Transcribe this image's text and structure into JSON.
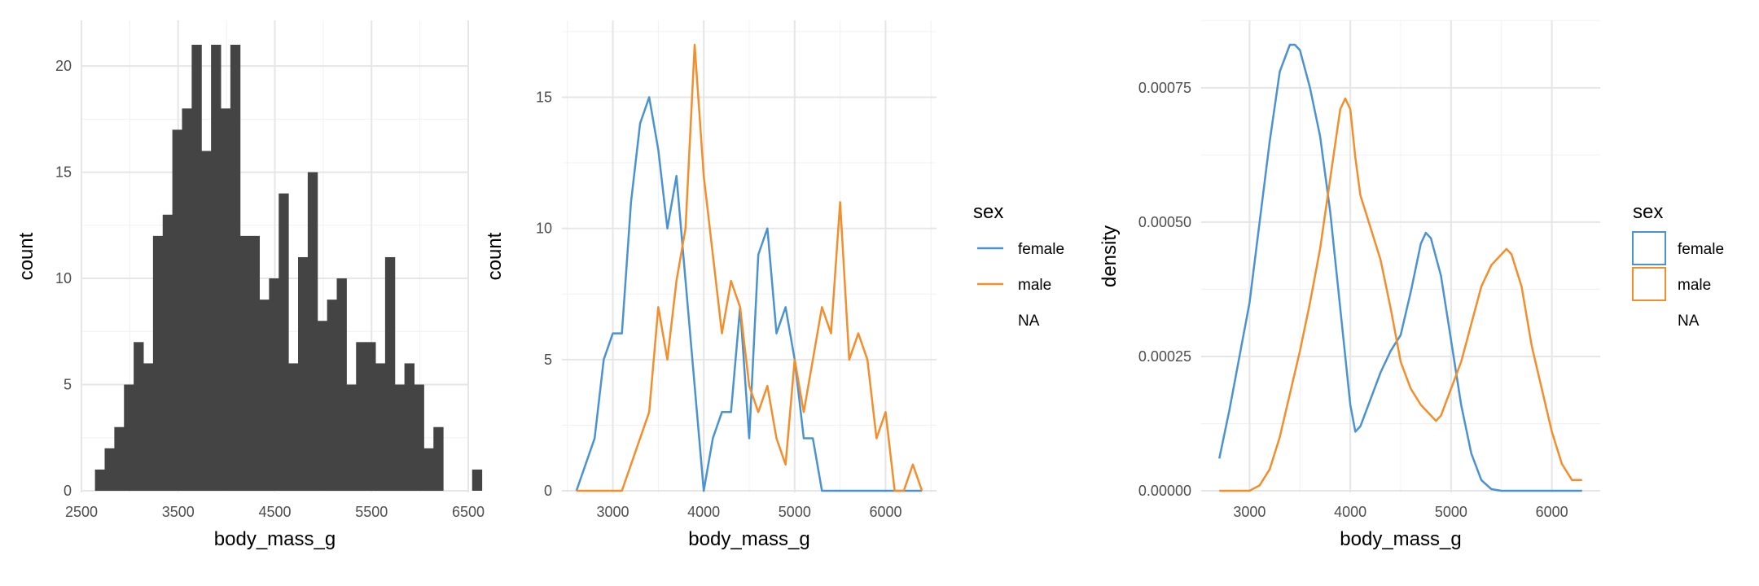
{
  "chart_data": [
    {
      "type": "bar",
      "subtype": "histogram",
      "xlabel": "body_mass_g",
      "ylabel": "count",
      "xlim": [
        2500,
        6500
      ],
      "ylim": [
        0,
        21
      ],
      "xticks": [
        2500,
        3500,
        4500,
        5500,
        6500
      ],
      "xtick_labels": [
        "2500",
        "3500",
        "4500",
        "5500",
        "6500"
      ],
      "yticks": [
        0,
        5,
        10,
        15,
        20
      ],
      "ytick_labels": [
        "0",
        "5",
        "10",
        "15",
        "20"
      ],
      "bin_start": 2640,
      "bin_width": 100,
      "values": [
        1,
        2,
        3,
        5,
        7,
        6,
        12,
        13,
        17,
        18,
        21,
        16,
        21,
        18,
        21,
        12,
        12,
        9,
        10,
        14,
        6,
        11,
        15,
        8,
        9,
        10,
        5,
        7,
        7,
        6,
        11,
        5,
        6,
        5,
        2,
        3,
        0,
        0,
        0,
        1
      ],
      "bar_color": "#444444",
      "grid": true
    },
    {
      "type": "line",
      "subtype": "frequency polygon",
      "xlabel": "body_mass_g",
      "ylabel": "count",
      "xlim": [
        2440,
        6560
      ],
      "ylim": [
        0,
        17
      ],
      "xticks": [
        3000,
        4000,
        5000,
        6000
      ],
      "xtick_labels": [
        "3000",
        "4000",
        "5000",
        "6000"
      ],
      "yticks": [
        0,
        5,
        10,
        15
      ],
      "ytick_labels": [
        "0",
        "5",
        "10",
        "15"
      ],
      "x": [
        2600,
        2800,
        2900,
        3000,
        3100,
        3200,
        3300,
        3400,
        3500,
        3600,
        3700,
        3800,
        3900,
        4000,
        4100,
        4200,
        4300,
        4400,
        4500,
        4600,
        4700,
        4800,
        4900,
        5000,
        5100,
        5200,
        5300,
        5400,
        5500,
        5600,
        5700,
        5800,
        5900,
        6000,
        6100,
        6200,
        6300,
        6400
      ],
      "series": [
        {
          "name": "female",
          "color": "#4B92D1",
          "values": [
            0,
            2,
            5,
            6,
            6,
            11,
            14,
            15,
            13,
            10,
            12,
            8,
            4,
            0,
            2,
            3,
            3,
            7,
            2,
            9,
            10,
            6,
            7,
            5,
            2,
            2,
            0,
            0,
            0,
            0,
            0,
            0,
            0,
            0,
            0,
            0,
            0,
            0
          ]
        },
        {
          "name": "male",
          "color": "#F28E2B",
          "values": [
            0,
            0,
            0,
            0,
            0,
            1,
            2,
            3,
            7,
            5,
            8,
            10,
            17,
            12,
            9,
            6,
            8,
            7,
            4,
            3,
            4,
            2,
            1,
            5,
            3,
            5,
            7,
            6,
            11,
            5,
            6,
            5,
            2,
            3,
            0,
            0,
            1,
            0
          ]
        }
      ],
      "legend": {
        "title": "sex",
        "entries": [
          "female",
          "male",
          "NA"
        ],
        "position": "right"
      },
      "grid": true
    },
    {
      "type": "line",
      "subtype": "density",
      "xlabel": "body_mass_g",
      "ylabel": "density",
      "xlim": [
        2520,
        6480
      ],
      "ylim": [
        0,
        0.00083
      ],
      "xticks": [
        3000,
        4000,
        5000,
        6000
      ],
      "xtick_labels": [
        "3000",
        "4000",
        "5000",
        "6000"
      ],
      "yticks": [
        0,
        0.00025,
        0.0005,
        0.00075
      ],
      "ytick_labels": [
        "0.00000",
        "0.00025",
        "0.00050",
        "0.00075"
      ],
      "series": [
        {
          "name": "female",
          "color": "#4B92D1",
          "x": [
            2700,
            2800,
            2900,
            3000,
            3100,
            3200,
            3300,
            3400,
            3450,
            3500,
            3600,
            3700,
            3800,
            3900,
            4000,
            4050,
            4100,
            4200,
            4300,
            4400,
            4500,
            4600,
            4700,
            4750,
            4800,
            4900,
            5000,
            5100,
            5200,
            5300,
            5400,
            5500,
            6300
          ],
          "values": [
            6e-05,
            0.00015,
            0.00025,
            0.00035,
            0.0005,
            0.00065,
            0.00078,
            0.00083,
            0.00083,
            0.00082,
            0.00075,
            0.00066,
            0.00052,
            0.00034,
            0.00016,
            0.00011,
            0.00012,
            0.00017,
            0.00022,
            0.00026,
            0.00029,
            0.00037,
            0.00046,
            0.00048,
            0.00047,
            0.0004,
            0.00028,
            0.00016,
            7e-05,
            2e-05,
            3e-06,
            0.0,
            0.0
          ]
        },
        {
          "name": "male",
          "color": "#F28E2B",
          "x": [
            2700,
            3000,
            3100,
            3200,
            3300,
            3400,
            3500,
            3600,
            3700,
            3800,
            3900,
            3950,
            4000,
            4050,
            4100,
            4200,
            4300,
            4400,
            4500,
            4600,
            4700,
            4800,
            4850,
            4900,
            5000,
            5100,
            5200,
            5300,
            5400,
            5500,
            5550,
            5600,
            5700,
            5800,
            5900,
            6000,
            6100,
            6200,
            6300
          ],
          "values": [
            0.0,
            0.0,
            1e-05,
            4e-05,
            0.0001,
            0.00018,
            0.00026,
            0.00035,
            0.00045,
            0.00058,
            0.00071,
            0.00073,
            0.00071,
            0.00062,
            0.00055,
            0.00049,
            0.00043,
            0.00034,
            0.00024,
            0.00019,
            0.00016,
            0.00014,
            0.00013,
            0.00014,
            0.00019,
            0.00024,
            0.00031,
            0.00038,
            0.00042,
            0.00044,
            0.00045,
            0.00044,
            0.00038,
            0.00027,
            0.00019,
            0.00011,
            5e-05,
            2e-05,
            2e-05
          ]
        }
      ],
      "legend": {
        "title": "sex",
        "entries": [
          "female",
          "male",
          "NA"
        ],
        "style": "boxes",
        "position": "right"
      },
      "grid": true
    }
  ]
}
